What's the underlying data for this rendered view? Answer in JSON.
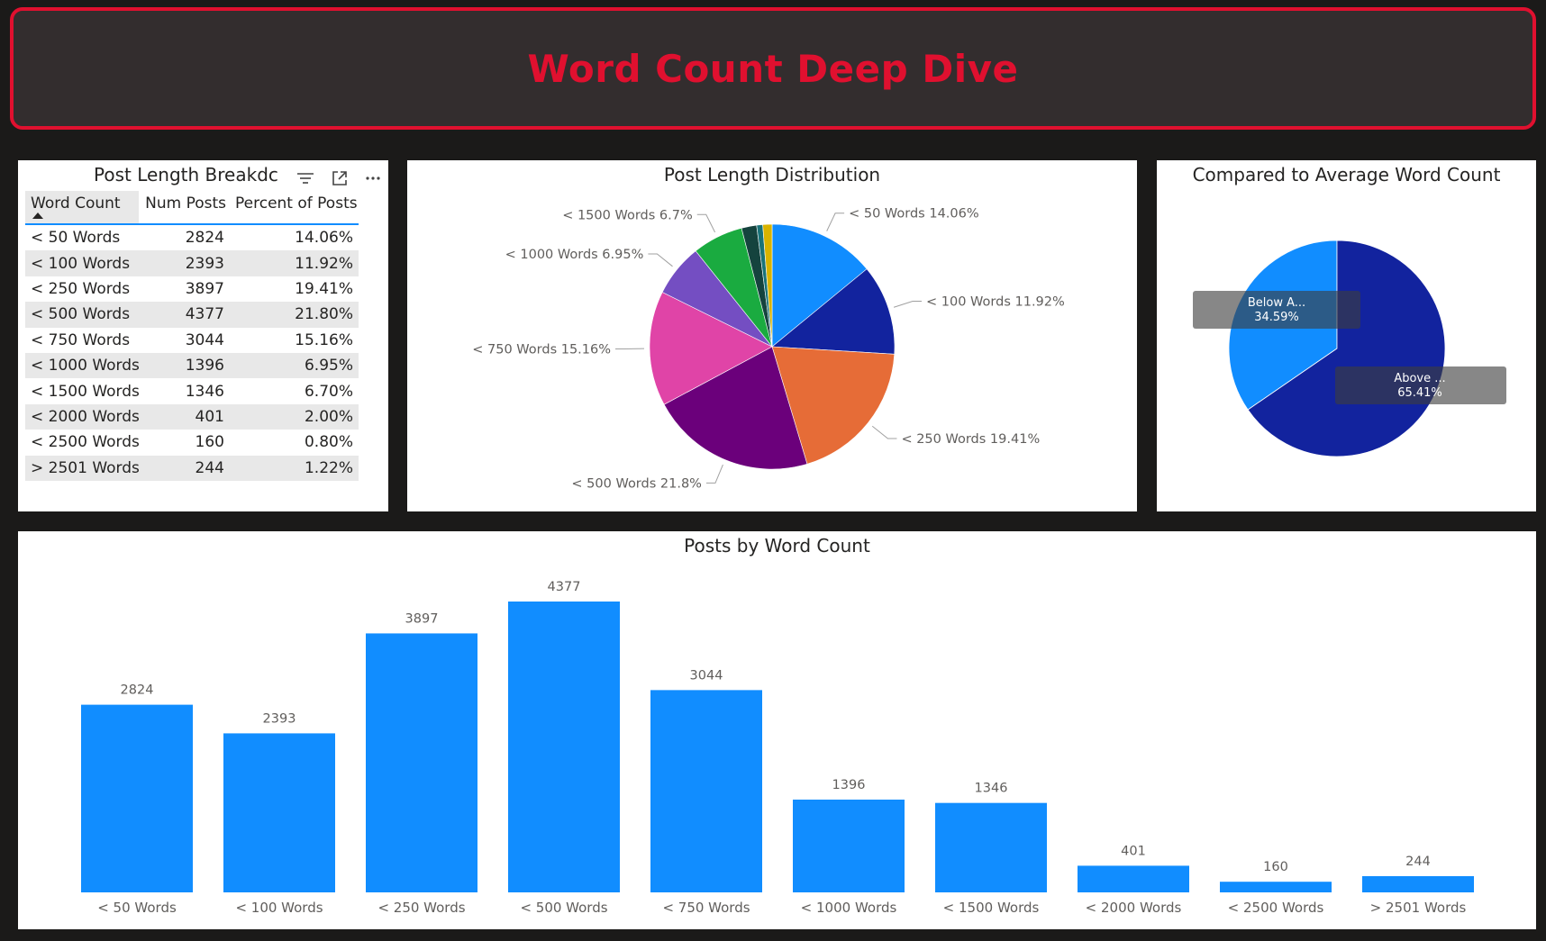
{
  "header": {
    "title": "Word Count Deep Dive"
  },
  "colors": {
    "accent": "#e0102f",
    "bar": "#118dff",
    "slices": [
      "#118dff",
      "#12239e",
      "#e66c37",
      "#6b007b",
      "#e044a7",
      "#744ec2",
      "#1aab40",
      "#15433e",
      "#197278",
      "#d9b300",
      "#d4a5a5"
    ]
  },
  "table": {
    "title": "Post Length Breakdown",
    "title_visible": "Post Length Breakdc",
    "columns": [
      "Word Count",
      "Num Posts",
      "Percent of Posts"
    ],
    "rows": [
      [
        "< 50 Words",
        "2824",
        "14.06%"
      ],
      [
        "< 100 Words",
        "2393",
        "11.92%"
      ],
      [
        "< 250 Words",
        "3897",
        "19.41%"
      ],
      [
        "< 500 Words",
        "4377",
        "21.80%"
      ],
      [
        "< 750 Words",
        "3044",
        "15.16%"
      ],
      [
        "< 1000 Words",
        "1396",
        "6.95%"
      ],
      [
        "< 1500 Words",
        "1346",
        "6.70%"
      ],
      [
        "< 2000 Words",
        "401",
        "2.00%"
      ],
      [
        "< 2500 Words",
        "160",
        "0.80%"
      ],
      [
        "> 2501 Words",
        "244",
        "1.22%"
      ]
    ]
  },
  "chart_data": [
    {
      "type": "pie",
      "title": "Post Length Distribution",
      "categories": [
        "< 50 Words",
        "< 100 Words",
        "< 250 Words",
        "< 500 Words",
        "< 750 Words",
        "< 1000 Words",
        "< 1500 Words",
        "< 2000 Words",
        "< 2500 Words",
        "> 2501 Words"
      ],
      "values": [
        14.06,
        11.92,
        19.41,
        21.8,
        15.16,
        6.95,
        6.7,
        2.0,
        0.8,
        1.22
      ],
      "labels": [
        "< 50 Words 14.06%",
        "< 100 Words 11.92%",
        "< 250 Words 19.41%",
        "< 500 Words 21.8%",
        "< 750 Words 15.16%",
        "< 1000 Words 6.95%",
        "< 1500 Words 6.7%"
      ]
    },
    {
      "type": "pie",
      "title": "Compared to Average Word Count",
      "categories": [
        "Below A...",
        "Above ..."
      ],
      "values": [
        34.59,
        65.41
      ],
      "labels": [
        "34.59%",
        "65.41%"
      ]
    },
    {
      "type": "bar",
      "title": "Posts by Word Count",
      "categories": [
        "< 50 Words",
        "< 100 Words",
        "< 250 Words",
        "< 500 Words",
        "< 750 Words",
        "< 1000 Words",
        "< 1500 Words",
        "< 2000 Words",
        "< 2500 Words",
        "> 2501 Words"
      ],
      "values": [
        2824,
        2393,
        3897,
        4377,
        3044,
        1396,
        1346,
        401,
        160,
        244
      ],
      "ylim": [
        0,
        4377
      ]
    }
  ]
}
